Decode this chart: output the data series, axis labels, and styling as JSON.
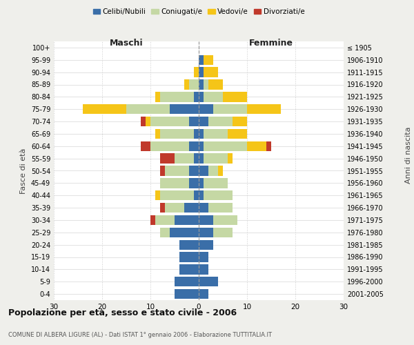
{
  "age_groups": [
    "0-4",
    "5-9",
    "10-14",
    "15-19",
    "20-24",
    "25-29",
    "30-34",
    "35-39",
    "40-44",
    "45-49",
    "50-54",
    "55-59",
    "60-64",
    "65-69",
    "70-74",
    "75-79",
    "80-84",
    "85-89",
    "90-94",
    "95-99",
    "100+"
  ],
  "birth_years": [
    "2001-2005",
    "1996-2000",
    "1991-1995",
    "1986-1990",
    "1981-1985",
    "1976-1980",
    "1971-1975",
    "1966-1970",
    "1961-1965",
    "1956-1960",
    "1951-1955",
    "1946-1950",
    "1941-1945",
    "1936-1940",
    "1931-1935",
    "1926-1930",
    "1921-1925",
    "1916-1920",
    "1911-1915",
    "1906-1910",
    "≤ 1905"
  ],
  "males": {
    "celibi": [
      5,
      5,
      4,
      4,
      4,
      6,
      5,
      3,
      1,
      2,
      2,
      1,
      2,
      1,
      2,
      6,
      1,
      0,
      0,
      0,
      0
    ],
    "coniugati": [
      0,
      0,
      0,
      0,
      0,
      2,
      4,
      4,
      7,
      6,
      5,
      4,
      8,
      7,
      8,
      9,
      7,
      2,
      0,
      0,
      0
    ],
    "vedovi": [
      0,
      0,
      0,
      0,
      0,
      0,
      0,
      0,
      1,
      0,
      0,
      0,
      0,
      1,
      1,
      9,
      1,
      1,
      1,
      0,
      0
    ],
    "divorziati": [
      0,
      0,
      0,
      0,
      0,
      0,
      1,
      1,
      0,
      0,
      1,
      3,
      2,
      0,
      1,
      0,
      0,
      0,
      0,
      0,
      0
    ]
  },
  "females": {
    "nubili": [
      2,
      4,
      2,
      2,
      3,
      3,
      3,
      2,
      1,
      1,
      2,
      1,
      1,
      1,
      2,
      3,
      1,
      1,
      1,
      1,
      0
    ],
    "coniugate": [
      0,
      0,
      0,
      0,
      0,
      4,
      5,
      5,
      6,
      5,
      2,
      5,
      9,
      5,
      5,
      7,
      4,
      1,
      0,
      0,
      0
    ],
    "vedove": [
      0,
      0,
      0,
      0,
      0,
      0,
      0,
      0,
      0,
      0,
      1,
      1,
      4,
      4,
      3,
      7,
      5,
      3,
      3,
      2,
      0
    ],
    "divorziate": [
      0,
      0,
      0,
      0,
      0,
      0,
      0,
      0,
      0,
      0,
      0,
      0,
      1,
      0,
      0,
      0,
      0,
      0,
      0,
      0,
      0
    ]
  },
  "colors": {
    "celibi_nubili": "#3a6ea8",
    "coniugati": "#c5d8a4",
    "vedovi": "#f5c518",
    "divorziati": "#c0392b"
  },
  "title": "Popolazione per età, sesso e stato civile - 2006",
  "subtitle": "COMUNE DI ALBERA LIGURE (AL) - Dati ISTAT 1° gennaio 2006 - Elaborazione TUTTITALIA.IT",
  "xlabel_left": "Maschi",
  "xlabel_right": "Femmine",
  "ylabel_left": "Fasce di età",
  "ylabel_right": "Anni di nascita",
  "xlim": 30,
  "bg_color": "#efefeb",
  "plot_bg": "#ffffff",
  "grid_color": "#cccccc"
}
